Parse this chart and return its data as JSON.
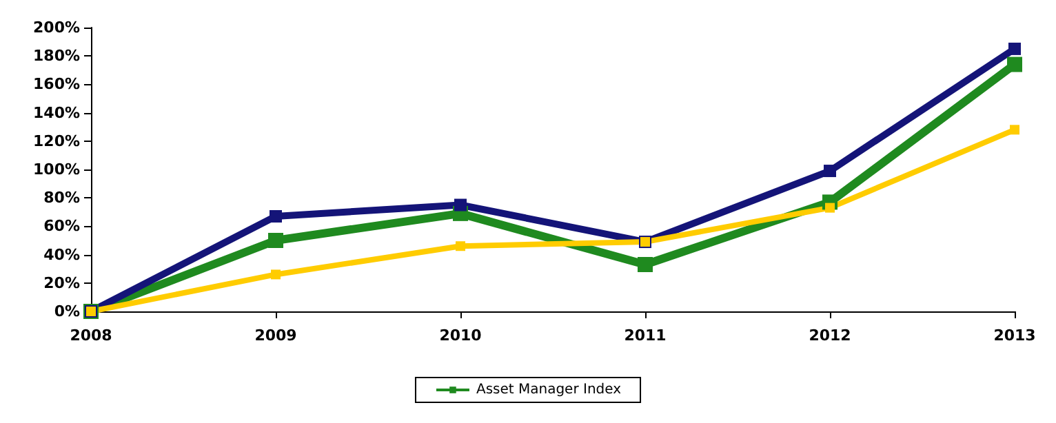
{
  "chart_data": {
    "type": "line",
    "categories": [
      "2008",
      "2009",
      "2010",
      "2011",
      "2012",
      "2013"
    ],
    "series": [
      {
        "name": "Asset Manager Index",
        "color": "#1f8a1f",
        "values": [
          0,
          50,
          69,
          33,
          77,
          174
        ]
      },
      {
        "color": "#141478",
        "values": [
          0,
          67,
          75,
          49,
          99,
          185
        ]
      },
      {
        "color": "#ffcc00",
        "values": [
          0,
          26,
          46,
          49,
          73,
          128
        ]
      }
    ],
    "ylim": [
      0,
      200
    ],
    "yticks": [
      {
        "value": 0,
        "label": "0%"
      },
      {
        "value": 20,
        "label": "20%"
      },
      {
        "value": 40,
        "label": "40%"
      },
      {
        "value": 60,
        "label": "60%"
      },
      {
        "value": 80,
        "label": "80%"
      },
      {
        "value": 100,
        "label": "100%"
      },
      {
        "value": 120,
        "label": "120%"
      },
      {
        "value": 140,
        "label": "140%"
      },
      {
        "value": 160,
        "label": "160%"
      },
      {
        "value": 180,
        "label": "180%"
      },
      {
        "value": 200,
        "label": "200%"
      }
    ],
    "grid": false,
    "legend": "bottom",
    "marker": "square",
    "line_style": "solid"
  }
}
